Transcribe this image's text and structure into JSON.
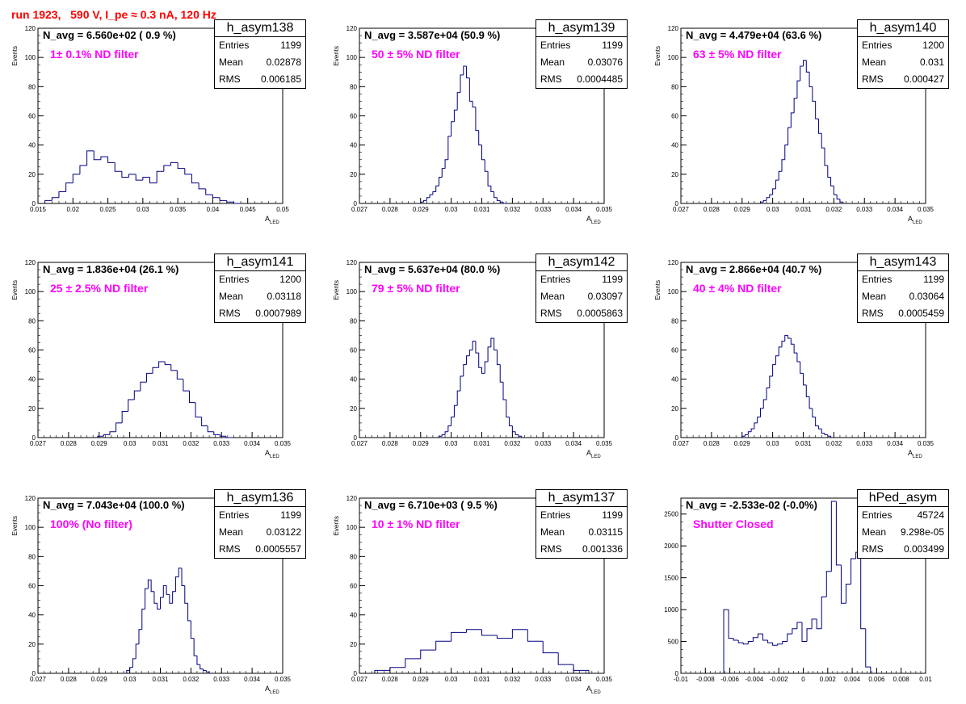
{
  "title": "run 1923,   590 V, I_pe ≈ 0.3 nA, 120 Hz",
  "colors": {
    "title": "#ff0000",
    "filter": "#ff00ff",
    "line": "#00007f"
  },
  "stat_labels": {
    "entries": "Entries",
    "mean": "Mean",
    "rms": "RMS"
  },
  "axis_labels": {
    "y": "Events",
    "x_main": "A",
    "x_sub": "LED"
  },
  "panels": [
    {
      "hname": "h_asym138",
      "navg": "N_avg = 6.560e+02 ( 0.9 %)",
      "filter": "1± 0.1% ND filter",
      "entries": "1199",
      "mean": "0.02878",
      "rms": "0.006185"
    },
    {
      "hname": "h_asym139",
      "navg": "N_avg = 3.587e+04 (50.9 %)",
      "filter": "50 ± 5% ND filter",
      "entries": "1199",
      "mean": "0.03076",
      "rms": "0.0004485"
    },
    {
      "hname": "h_asym140",
      "navg": "N_avg = 4.479e+04 (63.6 %)",
      "filter": "63 ± 5% ND filter",
      "entries": "1200",
      "mean": "0.031",
      "rms": "0.000427"
    },
    {
      "hname": "h_asym141",
      "navg": "N_avg = 1.836e+04 (26.1 %)",
      "filter": "25 ± 2.5% ND filter",
      "entries": "1200",
      "mean": "0.03118",
      "rms": "0.0007989"
    },
    {
      "hname": "h_asym142",
      "navg": "N_avg = 5.637e+04 (80.0 %)",
      "filter": "79 ± 5% ND filter",
      "entries": "1199",
      "mean": "0.03097",
      "rms": "0.0005863"
    },
    {
      "hname": "h_asym143",
      "navg": "N_avg = 2.866e+04 (40.7 %)",
      "filter": "40 ± 4% ND filter",
      "entries": "1199",
      "mean": "0.03064",
      "rms": "0.0005459"
    },
    {
      "hname": "h_asym136",
      "navg": "N_avg = 7.043e+04 (100.0 %)",
      "filter": "100% (No filter)",
      "entries": "1199",
      "mean": "0.03122",
      "rms": "0.0005557"
    },
    {
      "hname": "h_asym137",
      "navg": "N_avg = 6.710e+03 ( 9.5 %)",
      "filter": "10 ± 1% ND filter",
      "entries": "1199",
      "mean": "0.03115",
      "rms": "0.001336"
    },
    {
      "hname": "hPed_asym",
      "navg": "N_avg = -2.533e-02 (-0.0%)",
      "filter": "Shutter Closed",
      "entries": "45724",
      "mean": "9.298e-05",
      "rms": "0.003499"
    }
  ],
  "chart_data": [
    {
      "type": "histogram",
      "title": "h_asym138",
      "xlabel": "A_LED",
      "ylabel": "Events",
      "xlim": [
        0.015,
        0.05
      ],
      "ylim": [
        0,
        120
      ],
      "xticks": [
        0.015,
        0.02,
        0.025,
        0.03,
        0.035,
        0.04,
        0.045,
        0.05
      ],
      "xticklabels": [
        "0.015",
        "0.02",
        "0.025",
        "0.03",
        "0.035",
        "0.04",
        "0.045",
        "0.05"
      ],
      "yticks": [
        0,
        20,
        40,
        60,
        80,
        100,
        120
      ],
      "x": [
        0.0165,
        0.0175,
        0.0185,
        0.0195,
        0.0205,
        0.0215,
        0.0225,
        0.0235,
        0.0245,
        0.0255,
        0.0265,
        0.0275,
        0.0285,
        0.0295,
        0.0305,
        0.0315,
        0.0325,
        0.0335,
        0.0345,
        0.0355,
        0.0365,
        0.0375,
        0.0385,
        0.0395,
        0.0405,
        0.0415,
        0.0425,
        0.0435
      ],
      "values": [
        2,
        4,
        8,
        14,
        20,
        26,
        36,
        30,
        32,
        28,
        22,
        18,
        20,
        16,
        18,
        14,
        22,
        26,
        28,
        24,
        20,
        14,
        10,
        6,
        4,
        2,
        1,
        0
      ]
    },
    {
      "type": "histogram",
      "title": "h_asym139",
      "xlabel": "A_LED",
      "ylabel": "Events",
      "xlim": [
        0.027,
        0.035
      ],
      "ylim": [
        0,
        120
      ],
      "xticks": [
        0.027,
        0.028,
        0.029,
        0.03,
        0.031,
        0.032,
        0.033,
        0.034,
        0.035
      ],
      "xticklabels": [
        "0.027",
        "0.028",
        "0.029",
        "0.03",
        "0.031",
        "0.032",
        "0.033",
        "0.034",
        "0.035"
      ],
      "yticks": [
        0,
        20,
        40,
        60,
        80,
        100,
        120
      ],
      "x": [
        0.02905,
        0.02915,
        0.02925,
        0.02935,
        0.02945,
        0.02955,
        0.02965,
        0.02975,
        0.02985,
        0.02995,
        0.03005,
        0.03015,
        0.03025,
        0.03035,
        0.03045,
        0.03055,
        0.03065,
        0.03075,
        0.03085,
        0.03095,
        0.03105,
        0.03115,
        0.03125,
        0.03135,
        0.03145,
        0.03155,
        0.03165,
        0.03175
      ],
      "values": [
        1,
        2,
        4,
        6,
        8,
        12,
        18,
        24,
        30,
        46,
        56,
        64,
        76,
        88,
        94,
        86,
        70,
        66,
        50,
        40,
        30,
        22,
        12,
        8,
        4,
        2,
        1,
        0
      ]
    },
    {
      "type": "histogram",
      "title": "h_asym140",
      "xlabel": "A_LED",
      "ylabel": "Events",
      "xlim": [
        0.027,
        0.035
      ],
      "ylim": [
        0,
        120
      ],
      "xticks": [
        0.027,
        0.028,
        0.029,
        0.03,
        0.031,
        0.032,
        0.033,
        0.034,
        0.035
      ],
      "xticklabels": [
        "0.027",
        "0.028",
        "0.029",
        "0.03",
        "0.031",
        "0.032",
        "0.033",
        "0.034",
        "0.035"
      ],
      "yticks": [
        0,
        20,
        40,
        60,
        80,
        100,
        120
      ],
      "x": [
        0.02965,
        0.02975,
        0.02985,
        0.02995,
        0.03005,
        0.03015,
        0.03025,
        0.03035,
        0.03045,
        0.03055,
        0.03065,
        0.03075,
        0.03085,
        0.03095,
        0.03105,
        0.03115,
        0.03125,
        0.03135,
        0.03145,
        0.03155,
        0.03165,
        0.03175,
        0.03185,
        0.03195,
        0.03205,
        0.03215,
        0.03225
      ],
      "values": [
        1,
        2,
        4,
        6,
        10,
        16,
        22,
        30,
        40,
        52,
        62,
        72,
        84,
        94,
        98,
        90,
        80,
        70,
        58,
        48,
        38,
        26,
        18,
        12,
        6,
        3,
        1
      ]
    },
    {
      "type": "histogram",
      "title": "h_asym141",
      "xlabel": "A_LED",
      "ylabel": "Events",
      "xlim": [
        0.027,
        0.035
      ],
      "ylim": [
        0,
        120
      ],
      "xticks": [
        0.027,
        0.028,
        0.029,
        0.03,
        0.031,
        0.032,
        0.033,
        0.034,
        0.035
      ],
      "xticklabels": [
        "0.027",
        "0.028",
        "0.029",
        "0.03",
        "0.031",
        "0.032",
        "0.033",
        "0.034",
        "0.035"
      ],
      "yticks": [
        0,
        20,
        40,
        60,
        80,
        100,
        120
      ],
      "x": [
        0.02905,
        0.02925,
        0.02945,
        0.02965,
        0.02985,
        0.03005,
        0.03025,
        0.03045,
        0.03065,
        0.03085,
        0.03105,
        0.03125,
        0.03145,
        0.03165,
        0.03185,
        0.03205,
        0.03225,
        0.03245,
        0.03265,
        0.03285,
        0.03305,
        0.03325
      ],
      "values": [
        1,
        2,
        4,
        10,
        18,
        26,
        32,
        38,
        44,
        48,
        52,
        50,
        46,
        40,
        32,
        24,
        14,
        8,
        4,
        2,
        1,
        0
      ]
    },
    {
      "type": "histogram",
      "title": "h_asym142",
      "xlabel": "A_LED",
      "ylabel": "Events",
      "xlim": [
        0.027,
        0.035
      ],
      "ylim": [
        0,
        120
      ],
      "xticks": [
        0.027,
        0.028,
        0.029,
        0.03,
        0.031,
        0.032,
        0.033,
        0.034,
        0.035
      ],
      "xticklabels": [
        "0.027",
        "0.028",
        "0.029",
        "0.03",
        "0.031",
        "0.032",
        "0.033",
        "0.034",
        "0.035"
      ],
      "yticks": [
        0,
        20,
        40,
        60,
        80,
        100,
        120
      ],
      "x": [
        0.02965,
        0.02975,
        0.02985,
        0.02995,
        0.03005,
        0.03015,
        0.03025,
        0.03035,
        0.03045,
        0.03055,
        0.03065,
        0.03075,
        0.03085,
        0.03095,
        0.03105,
        0.03115,
        0.03125,
        0.03135,
        0.03145,
        0.03155,
        0.03165,
        0.03175,
        0.03185,
        0.03195,
        0.03205,
        0.03215,
        0.03225
      ],
      "values": [
        1,
        2,
        4,
        8,
        14,
        22,
        32,
        42,
        50,
        56,
        60,
        66,
        58,
        48,
        44,
        52,
        62,
        68,
        60,
        50,
        38,
        26,
        14,
        8,
        4,
        2,
        1
      ]
    },
    {
      "type": "histogram",
      "title": "h_asym143",
      "xlabel": "A_LED",
      "ylabel": "Events",
      "xlim": [
        0.027,
        0.035
      ],
      "ylim": [
        0,
        120
      ],
      "xticks": [
        0.027,
        0.028,
        0.029,
        0.03,
        0.031,
        0.032,
        0.033,
        0.034,
        0.035
      ],
      "xticklabels": [
        "0.027",
        "0.028",
        "0.029",
        "0.03",
        "0.031",
        "0.032",
        "0.033",
        "0.034",
        "0.035"
      ],
      "yticks": [
        0,
        20,
        40,
        60,
        80,
        100,
        120
      ],
      "x": [
        0.02905,
        0.02915,
        0.02925,
        0.02935,
        0.02945,
        0.02955,
        0.02965,
        0.02975,
        0.02985,
        0.02995,
        0.03005,
        0.03015,
        0.03025,
        0.03035,
        0.03045,
        0.03055,
        0.03065,
        0.03075,
        0.03085,
        0.03095,
        0.03105,
        0.03115,
        0.03125,
        0.03135,
        0.03145,
        0.03155,
        0.03165,
        0.03175,
        0.03185
      ],
      "values": [
        1,
        2,
        4,
        6,
        10,
        14,
        20,
        26,
        34,
        42,
        50,
        56,
        62,
        66,
        70,
        68,
        64,
        58,
        52,
        44,
        36,
        28,
        20,
        14,
        8,
        6,
        3,
        2,
        1
      ]
    },
    {
      "type": "histogram",
      "title": "h_asym136",
      "xlabel": "A_LED",
      "ylabel": "Events",
      "xlim": [
        0.027,
        0.035
      ],
      "ylim": [
        0,
        120
      ],
      "xticks": [
        0.027,
        0.028,
        0.029,
        0.03,
        0.031,
        0.032,
        0.033,
        0.034,
        0.035
      ],
      "xticklabels": [
        "0.027",
        "0.028",
        "0.029",
        "0.03",
        "0.031",
        "0.032",
        "0.033",
        "0.034",
        "0.035"
      ],
      "yticks": [
        0,
        20,
        40,
        60,
        80,
        100,
        120
      ],
      "x": [
        0.02995,
        0.03005,
        0.03015,
        0.03025,
        0.03035,
        0.03045,
        0.03055,
        0.03065,
        0.03075,
        0.03085,
        0.03095,
        0.03105,
        0.03115,
        0.03125,
        0.03135,
        0.03145,
        0.03155,
        0.03165,
        0.03175,
        0.03185,
        0.03195,
        0.03205,
        0.03215,
        0.03225,
        0.03235,
        0.03245,
        0.03255
      ],
      "values": [
        2,
        4,
        10,
        20,
        30,
        44,
        58,
        64,
        56,
        48,
        44,
        52,
        60,
        54,
        48,
        56,
        66,
        72,
        60,
        48,
        36,
        24,
        12,
        6,
        3,
        2,
        1
      ]
    },
    {
      "type": "histogram",
      "title": "h_asym137",
      "xlabel": "A_LED",
      "ylabel": "Events",
      "xlim": [
        0.027,
        0.035
      ],
      "ylim": [
        0,
        120
      ],
      "xticks": [
        0.027,
        0.028,
        0.029,
        0.03,
        0.031,
        0.032,
        0.033,
        0.034,
        0.035
      ],
      "xticklabels": [
        "0.027",
        "0.028",
        "0.029",
        "0.03",
        "0.031",
        "0.032",
        "0.033",
        "0.034",
        "0.035"
      ],
      "yticks": [
        0,
        20,
        40,
        60,
        80,
        100,
        120
      ],
      "x": [
        0.02775,
        0.02825,
        0.02875,
        0.02925,
        0.02975,
        0.03025,
        0.03075,
        0.03125,
        0.03175,
        0.03225,
        0.03275,
        0.03325,
        0.03375,
        0.03425
      ],
      "values": [
        2,
        4,
        10,
        16,
        22,
        28,
        30,
        26,
        24,
        30,
        22,
        14,
        6,
        2
      ]
    },
    {
      "type": "histogram",
      "title": "hPed_asym",
      "xlabel": "",
      "ylabel": "",
      "xlim": [
        -0.01,
        0.01
      ],
      "ylim": [
        0,
        2750
      ],
      "xticks": [
        -0.01,
        -0.008,
        -0.006,
        -0.004,
        -0.002,
        0,
        0.002,
        0.004,
        0.006,
        0.008,
        0.01
      ],
      "xticklabels": [
        "-0.01",
        "-0.008",
        "-0.006",
        "-0.004",
        "-0.002",
        "0",
        "0.002",
        "0.004",
        "0.006",
        "0.008",
        "0.01"
      ],
      "yticks": [
        0,
        500,
        1000,
        1500,
        2000,
        2500
      ],
      "x": [
        -0.0063,
        -0.0059,
        -0.0055,
        -0.0051,
        -0.0047,
        -0.0043,
        -0.0039,
        -0.0035,
        -0.0031,
        -0.0027,
        -0.0023,
        -0.0019,
        -0.0015,
        -0.0011,
        -0.0007,
        -0.0003,
        0.0001,
        0.0005,
        0.0009,
        0.0013,
        0.0017,
        0.0021,
        0.0025,
        0.0029,
        0.0033,
        0.0037,
        0.0041,
        0.0045,
        0.0049,
        0.0053
      ],
      "values": [
        1000,
        550,
        520,
        480,
        460,
        500,
        560,
        620,
        520,
        480,
        440,
        460,
        500,
        620,
        700,
        800,
        500,
        700,
        850,
        700,
        1200,
        1600,
        2700,
        1700,
        1100,
        1400,
        1800,
        1900,
        700,
        100
      ]
    }
  ]
}
